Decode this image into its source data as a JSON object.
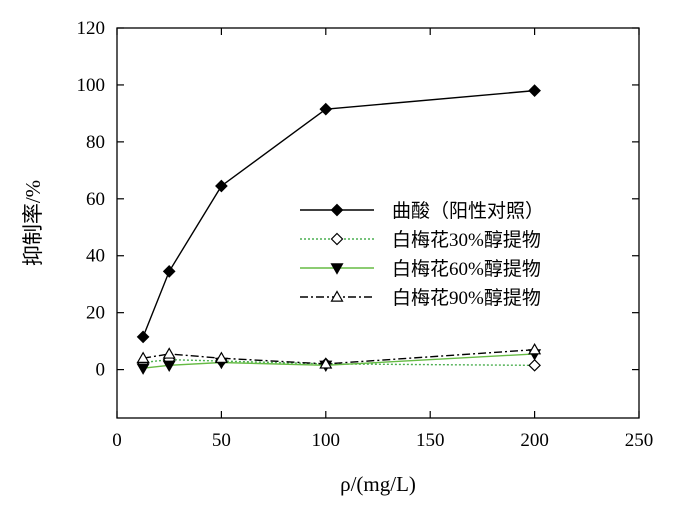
{
  "chart_data": {
    "type": "line",
    "xlabel": "ρ/(mg/L)",
    "ylabel": "抑制率/%",
    "xlim": [
      0,
      250
    ],
    "ylim": [
      -17,
      120
    ],
    "xticks": [
      0,
      50,
      100,
      150,
      200,
      250
    ],
    "yticks": [
      0,
      20,
      40,
      60,
      80,
      100,
      120
    ],
    "grid": false,
    "legend_position": "center-right",
    "x": [
      12.5,
      25,
      50,
      100,
      200
    ],
    "series": [
      {
        "name": "曲酸（阳性对照）",
        "values": [
          11.5,
          34.5,
          64.5,
          91.5,
          98
        ],
        "color": "#000000",
        "marker": "filled-diamond",
        "line": "solid"
      },
      {
        "name": "白梅花30%醇提物",
        "values": [
          2.5,
          3.5,
          3,
          2,
          1.5
        ],
        "color": "#4caf50",
        "marker": "open-diamond",
        "line": "dotted"
      },
      {
        "name": "白梅花60%醇提物",
        "values": [
          0.5,
          1.5,
          2.5,
          1.5,
          5.5
        ],
        "color": "#66bb44",
        "marker": "filled-down-triangle",
        "line": "solid"
      },
      {
        "name": "白梅花90%醇提物",
        "values": [
          4,
          5.5,
          4,
          2,
          7
        ],
        "color": "#000000",
        "marker": "open-up-triangle",
        "line": "dashdot"
      }
    ]
  }
}
